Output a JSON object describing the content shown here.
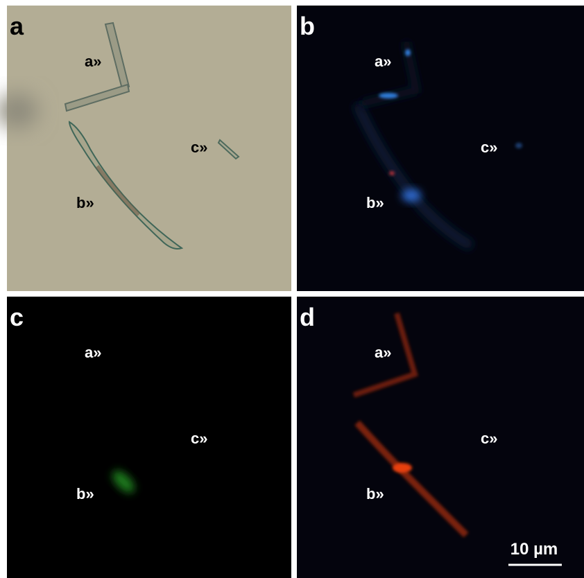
{
  "panels": [
    {
      "label": "a",
      "markers": [
        "a»",
        "b»",
        "c»"
      ]
    },
    {
      "label": "b",
      "markers": [
        "a»",
        "b»",
        "c»"
      ]
    },
    {
      "label": "c",
      "markers": [
        "a»",
        "b»",
        "c»"
      ]
    },
    {
      "label": "d",
      "markers": [
        "a»",
        "b»",
        "c»"
      ]
    }
  ],
  "scale_bar": {
    "label": "10 µm"
  }
}
